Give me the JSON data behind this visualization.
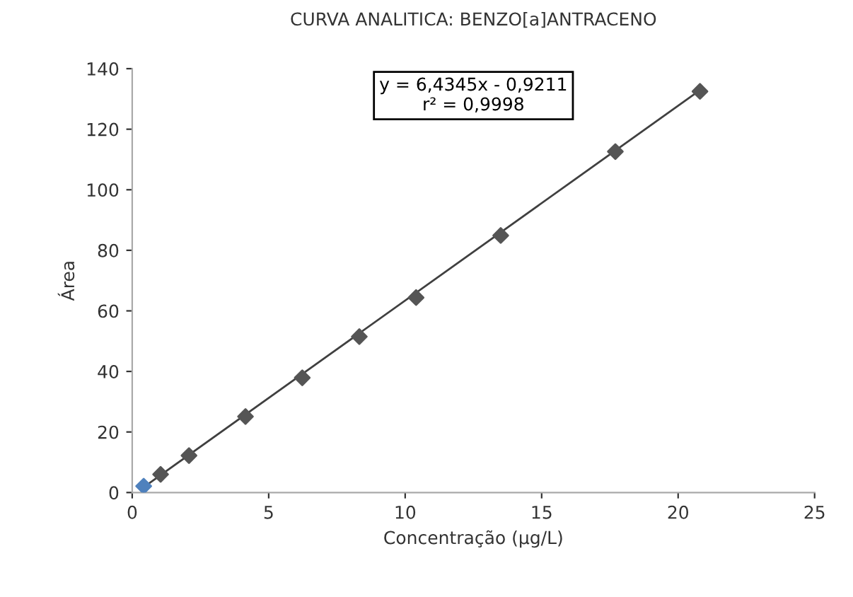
{
  "chart_data": {
    "type": "scatter",
    "title": "CURVA ANALITICA: BENZO[a]ANTRACENO",
    "xlabel": "Concentração (µg/L)",
    "ylabel": "Área",
    "xlim": [
      0,
      25
    ],
    "xticks": [
      0,
      5,
      10,
      15,
      20,
      25
    ],
    "ylim": [
      0,
      140
    ],
    "yticks": [
      0,
      20,
      40,
      60,
      80,
      100,
      120,
      140
    ],
    "grid": false,
    "legend": false,
    "annotations": [
      "y = 6,4345x - 0,9211\nr² = 0,9998"
    ],
    "series": [
      {
        "type": "line",
        "marker": "none",
        "color": "#404040",
        "x": [
          0.3,
          20.8
        ],
        "values": [
          1.0,
          132.9
        ]
      },
      {
        "marker": "diamond",
        "color": "#555555",
        "colors": [
          "#4f81bd",
          "#555555",
          "#555555",
          "#555555",
          "#555555",
          "#555555",
          "#555555",
          "#555555",
          "#555555",
          "#555555"
        ],
        "x": [
          0.42,
          1.04,
          2.08,
          4.15,
          6.23,
          8.32,
          10.4,
          13.5,
          17.7,
          20.8
        ],
        "values": [
          2.1,
          6.0,
          12.2,
          25.1,
          37.9,
          51.5,
          64.4,
          84.9,
          112.6,
          132.5
        ]
      }
    ]
  }
}
